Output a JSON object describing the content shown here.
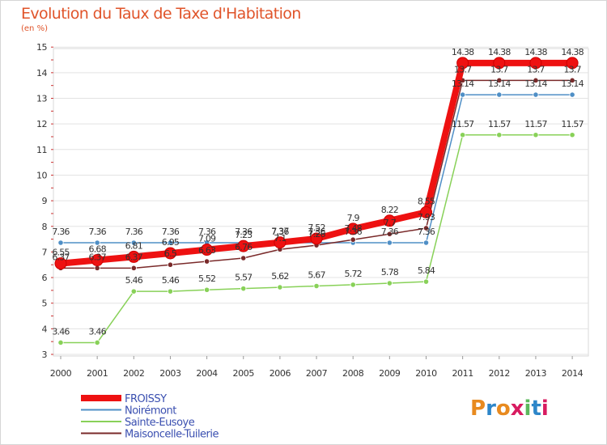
{
  "chart_data": {
    "type": "line",
    "title": "Evolution du Taux de Taxe d'Habitation",
    "subtitle": "(en %)",
    "x": [
      "2000",
      "2001",
      "2002",
      "2003",
      "2004",
      "2005",
      "2006",
      "2007",
      "2008",
      "2009",
      "2010",
      "2011",
      "2012",
      "2013",
      "2014"
    ],
    "ylim": [
      3,
      15
    ],
    "yticks": [
      3,
      4,
      5,
      6,
      7,
      8,
      9,
      10,
      11,
      12,
      13,
      14,
      15
    ],
    "grid": true,
    "legend_position": "bottom-left",
    "series": [
      {
        "name": "FROISSY",
        "color": "#ee1111",
        "values": [
          6.55,
          6.68,
          6.81,
          6.95,
          7.09,
          7.23,
          7.37,
          7.52,
          7.9,
          8.22,
          8.55,
          14.38,
          14.38,
          14.38,
          14.38
        ]
      },
      {
        "name": "Noirémont",
        "color": "#4f8fc6",
        "values": [
          7.36,
          7.36,
          7.36,
          7.36,
          7.36,
          7.36,
          7.36,
          7.36,
          7.36,
          7.36,
          7.36,
          13.14,
          13.14,
          13.14,
          13.14
        ]
      },
      {
        "name": "Sainte-Eusoye",
        "color": "#88d158",
        "values": [
          3.46,
          3.46,
          5.46,
          5.46,
          5.52,
          5.57,
          5.62,
          5.67,
          5.72,
          5.78,
          5.84,
          11.57,
          11.57,
          11.57,
          11.57
        ]
      },
      {
        "name": "Maisoncelle-Tuilerie",
        "color": "#7a2a2a",
        "values": [
          6.37,
          6.37,
          6.37,
          6.5,
          6.63,
          6.76,
          7.1,
          7.26,
          7.48,
          7.7,
          7.93,
          13.7,
          13.7,
          13.7,
          13.7
        ]
      }
    ]
  },
  "logo": {
    "text": "Proxiti"
  }
}
